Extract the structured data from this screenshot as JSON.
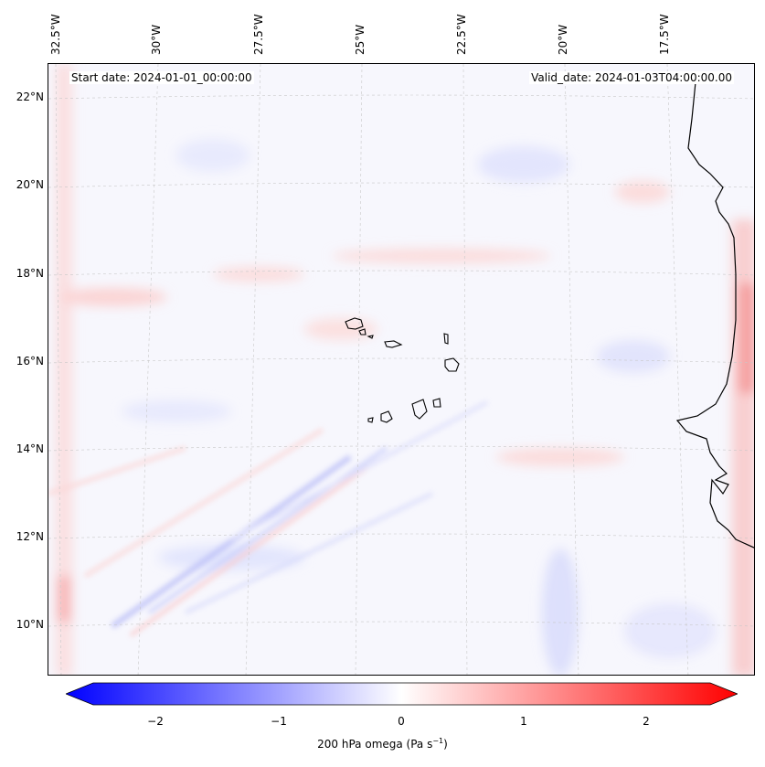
{
  "map": {
    "start_date": "Start date: 2024-01-01_00:00:00",
    "valid_date": "Valid_date: 2024-01-03T04:00:00.00",
    "lon_labels": [
      "32.5°W",
      "30°W",
      "27.5°W",
      "25°W",
      "22.5°W",
      "20°W",
      "17.5°W"
    ],
    "lat_labels": [
      "22°N",
      "20°N",
      "18°N",
      "16°N",
      "14°N",
      "12°N",
      "10°N"
    ]
  },
  "colorbar": {
    "ticks": [
      "−2",
      "−1",
      "0",
      "1",
      "2"
    ],
    "label_prefix": "200 hPa omega (Pa s",
    "label_exp": "−1",
    "label_suffix": ")",
    "cmap_low": "#0000ff",
    "cmap_mid": "#ffffff",
    "cmap_high": "#ff0000",
    "vmin": -2.75,
    "vmax": 2.75
  }
}
